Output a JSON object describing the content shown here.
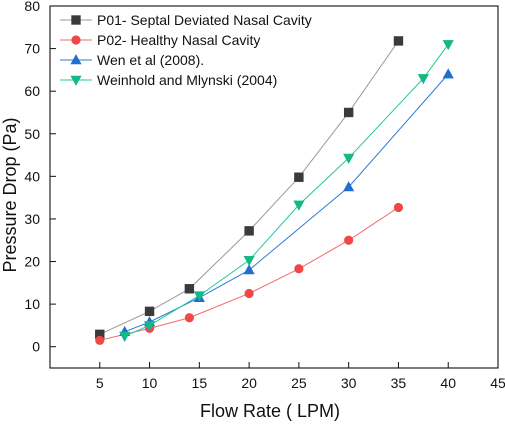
{
  "chart_data": {
    "type": "line",
    "xlabel": "Flow Rate ( LPM)",
    "ylabel": "Pressure Drop (Pa)",
    "xlim": [
      0,
      45
    ],
    "ylim": [
      -5,
      80
    ],
    "xticks": [
      5,
      10,
      15,
      20,
      25,
      30,
      35,
      40,
      45
    ],
    "yticks": [
      0,
      10,
      20,
      30,
      40,
      50,
      60,
      70,
      80
    ],
    "grid": false,
    "legend_position": "top-left",
    "series": [
      {
        "name": "P01- Septal Deviated Nasal Cavity",
        "marker": "square",
        "color": "#3a3a3a",
        "line_color": "#9a9a9a",
        "x": [
          5,
          10,
          14,
          20,
          25,
          30,
          35
        ],
        "y": [
          2.9,
          8.3,
          13.6,
          27.2,
          39.8,
          55.0,
          71.8
        ]
      },
      {
        "name": "P02- Healthy Nasal Cavity",
        "marker": "circle",
        "color": "#f04848",
        "line_color": "#f26a6a",
        "x": [
          5,
          10,
          14,
          20,
          25,
          30,
          35
        ],
        "y": [
          1.5,
          4.3,
          6.8,
          12.5,
          18.3,
          25.0,
          32.7
        ]
      },
      {
        "name": "Wen et al (2008).",
        "marker": "triangle-up",
        "color": "#1f6fd1",
        "line_color": "#2f7ad8",
        "x": [
          7.5,
          10,
          15,
          20,
          30,
          40
        ],
        "y": [
          3.5,
          5.8,
          11.5,
          18.0,
          37.5,
          64.0
        ]
      },
      {
        "name": "Weinhold and Mlynski (2004)",
        "marker": "triangle-down",
        "color": "#12b886",
        "line_color": "#20c997",
        "x": [
          7.5,
          10,
          15,
          20,
          25,
          30,
          37.5,
          40
        ],
        "y": [
          2.5,
          5.0,
          12.0,
          20.3,
          33.3,
          44.3,
          63.0,
          71.0
        ]
      }
    ]
  }
}
